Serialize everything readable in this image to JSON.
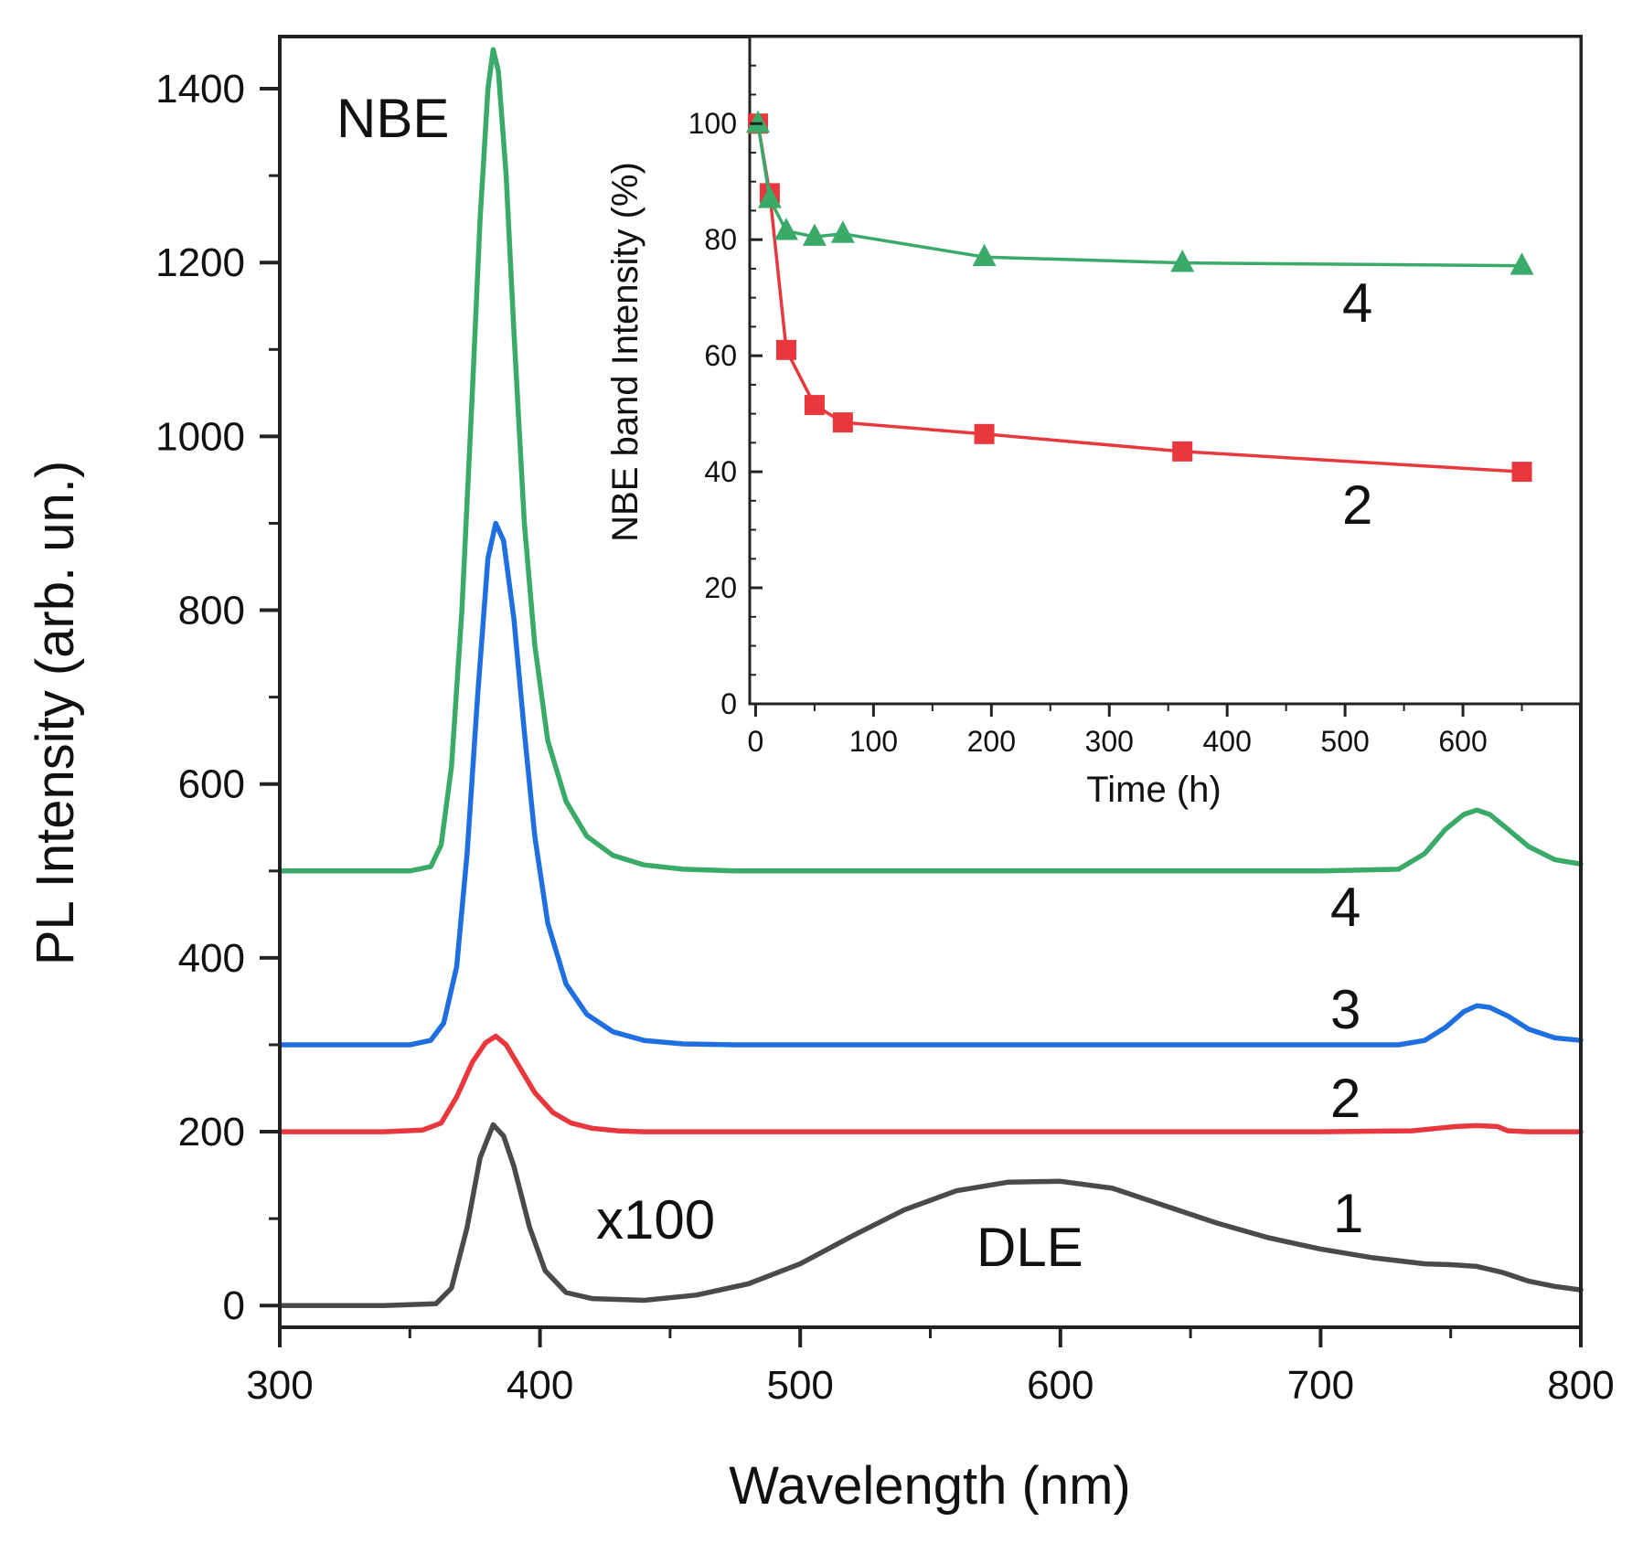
{
  "chart_data": [
    {
      "type": "line",
      "title": "",
      "xlabel": "Wavelength (nm)",
      "ylabel": "PL Intensity (arb. un.)",
      "xlim": [
        300,
        800
      ],
      "ylim": [
        -25,
        1460
      ],
      "xticks": [
        300,
        400,
        500,
        600,
        700,
        800
      ],
      "yticks": [
        0,
        200,
        400,
        600,
        800,
        1000,
        1200,
        1400
      ],
      "x_tick_labels": [
        "300",
        "400",
        "500",
        "600",
        "700",
        "800"
      ],
      "y_tick_labels": [
        "0",
        "200",
        "400",
        "600",
        "800",
        "1000",
        "1200",
        "1400"
      ],
      "grid": false,
      "series": [
        {
          "name": "1",
          "color": "#4a4a4a",
          "x": [
            300,
            340,
            360,
            366,
            372,
            377,
            382,
            386,
            390,
            396,
            402,
            410,
            420,
            440,
            460,
            480,
            500,
            520,
            540,
            560,
            580,
            600,
            620,
            640,
            660,
            680,
            700,
            720,
            740,
            750,
            760,
            770,
            780,
            790,
            800
          ],
          "y": [
            0,
            0,
            2,
            20,
            90,
            170,
            208,
            195,
            160,
            90,
            40,
            15,
            8,
            6,
            12,
            25,
            48,
            80,
            110,
            132,
            142,
            143,
            135,
            115,
            95,
            78,
            65,
            55,
            48,
            47,
            45,
            38,
            28,
            22,
            18
          ]
        },
        {
          "name": "2",
          "color": "#e8383d",
          "x": [
            300,
            340,
            355,
            362,
            368,
            374,
            379,
            383,
            387,
            392,
            398,
            405,
            412,
            420,
            430,
            440,
            500,
            600,
            700,
            735,
            745,
            752,
            760,
            768,
            772,
            780,
            800
          ],
          "y": [
            200,
            200,
            202,
            210,
            240,
            280,
            302,
            310,
            300,
            275,
            245,
            222,
            210,
            204,
            201,
            200,
            200,
            200,
            200,
            201,
            204,
            206,
            207,
            206,
            201,
            200,
            200
          ]
        },
        {
          "name": "3",
          "color": "#1f6fe0",
          "x": [
            300,
            350,
            358,
            363,
            368,
            372,
            376,
            380,
            383,
            386,
            390,
            394,
            398,
            403,
            410,
            418,
            428,
            440,
            455,
            475,
            500,
            600,
            700,
            730,
            740,
            748,
            755,
            760,
            765,
            772,
            780,
            790,
            800
          ],
          "y": [
            300,
            300,
            305,
            325,
            390,
            520,
            700,
            860,
            900,
            880,
            790,
            660,
            540,
            440,
            370,
            335,
            315,
            305,
            301,
            300,
            300,
            300,
            300,
            300,
            305,
            320,
            338,
            345,
            343,
            333,
            318,
            308,
            305
          ]
        },
        {
          "name": "4",
          "color": "#3aaa68",
          "x": [
            300,
            350,
            358,
            362,
            366,
            370,
            374,
            377,
            380,
            382,
            384,
            387,
            390,
            394,
            398,
            403,
            410,
            418,
            428,
            440,
            455,
            475,
            500,
            600,
            700,
            730,
            740,
            748,
            755,
            760,
            765,
            772,
            780,
            790,
            800
          ],
          "y": [
            500,
            500,
            505,
            530,
            620,
            800,
            1050,
            1250,
            1400,
            1445,
            1420,
            1300,
            1120,
            900,
            760,
            650,
            580,
            540,
            518,
            507,
            502,
            500,
            500,
            500,
            500,
            502,
            520,
            548,
            565,
            570,
            565,
            548,
            528,
            513,
            508
          ]
        }
      ]
    },
    {
      "type": "line",
      "title": "",
      "xlabel": "Time (h)",
      "ylabel": "NBE band Intensity (%)",
      "xlim": [
        -5,
        700
      ],
      "ylim": [
        0,
        115
      ],
      "xticks": [
        0,
        100,
        200,
        300,
        400,
        500,
        600
      ],
      "yticks": [
        0,
        20,
        40,
        60,
        80,
        100
      ],
      "x_tick_labels": [
        "0",
        "100",
        "200",
        "300",
        "400",
        "500",
        "600"
      ],
      "y_tick_labels": [
        "0",
        "20",
        "40",
        "60",
        "80",
        "100"
      ],
      "grid": false,
      "series": [
        {
          "name": "2",
          "color": "#e8383d",
          "marker": "square",
          "x": [
            2,
            12,
            26,
            50,
            74,
            194,
            362,
            650
          ],
          "y": [
            100,
            88,
            61,
            51.5,
            48.5,
            46.5,
            43.5,
            40
          ]
        },
        {
          "name": "4",
          "color": "#3aaa68",
          "marker": "triangle",
          "x": [
            2,
            12,
            26,
            50,
            74,
            194,
            362,
            650
          ],
          "y": [
            100,
            87,
            81.5,
            80.5,
            81,
            77,
            76,
            75.5
          ]
        }
      ]
    }
  ],
  "annotations": {
    "nbe": "NBE",
    "dle": "DLE",
    "scale": "x100",
    "curve_1": "1",
    "curve_2": "2",
    "curve_3": "3",
    "curve_4": "4",
    "inset_curve_4": "4",
    "inset_curve_2": "2"
  }
}
